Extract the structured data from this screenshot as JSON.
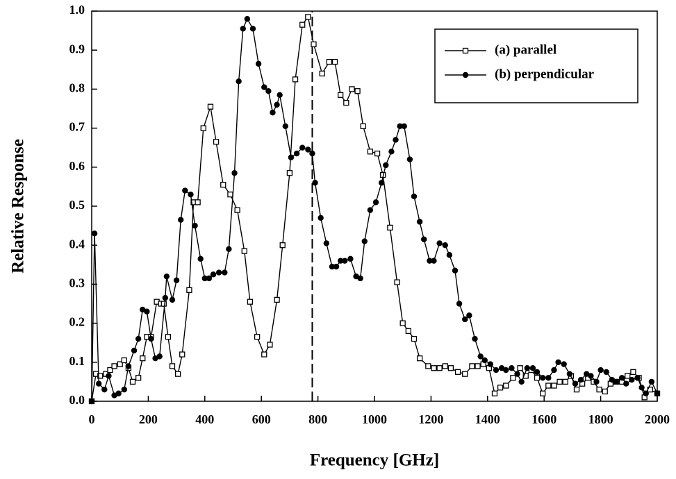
{
  "chart_data": {
    "type": "line",
    "xlabel": "Frequency [GHz]",
    "ylabel": "Relative Response",
    "xlim": [
      0,
      2000
    ],
    "xticks": [
      0,
      200,
      400,
      600,
      800,
      1000,
      1200,
      1400,
      1600,
      1800,
      2000
    ],
    "ylim": [
      0,
      1
    ],
    "yticks": [
      {
        "value": 0,
        "label": "0.0"
      },
      {
        "value": 0.1,
        "label": "0.1"
      },
      {
        "value": 0.2,
        "label": "0.2"
      },
      {
        "value": 0.3,
        "label": "0.3"
      },
      {
        "value": 0.4,
        "label": "0.4"
      },
      {
        "value": 0.5,
        "label": "0.5"
      },
      {
        "value": 0.6,
        "label": "0.6"
      },
      {
        "value": 0.7,
        "label": "0.7"
      },
      {
        "value": 0.8,
        "label": "0.8"
      },
      {
        "value": 0.9,
        "label": "0.9"
      },
      {
        "value": 1,
        "label": "1.0"
      }
    ],
    "grid": false,
    "legend": "upper right",
    "reference_line": {
      "x": 780,
      "style": "dashed"
    },
    "series": [
      {
        "name": "(a) parallel",
        "color": "#000000",
        "marker": "square-open",
        "x": [
          0,
          15,
          30,
          50,
          65,
          80,
          100,
          115,
          130,
          145,
          165,
          180,
          195,
          210,
          230,
          245,
          255,
          270,
          285,
          305,
          320,
          345,
          360,
          375,
          395,
          420,
          440,
          465,
          490,
          515,
          540,
          560,
          585,
          610,
          630,
          655,
          675,
          700,
          720,
          745,
          765,
          785,
          815,
          840,
          860,
          880,
          900,
          920,
          940,
          960,
          985,
          1010,
          1030,
          1055,
          1080,
          1100,
          1120,
          1140,
          1160,
          1190,
          1210,
          1230,
          1250,
          1270,
          1295,
          1320,
          1345,
          1365,
          1385,
          1405,
          1425,
          1445,
          1465,
          1490,
          1515,
          1535,
          1555,
          1575,
          1595,
          1615,
          1635,
          1655,
          1675,
          1695,
          1715,
          1735,
          1755,
          1775,
          1795,
          1815,
          1835,
          1855,
          1875,
          1895,
          1915,
          1935,
          1955,
          1975,
          2000
        ],
        "values": [
          0,
          0.07,
          0.065,
          0.07,
          0.08,
          0.09,
          0.095,
          0.105,
          0.085,
          0.05,
          0.06,
          0.11,
          0.165,
          0.165,
          0.255,
          0.25,
          0.25,
          0.165,
          0.09,
          0.07,
          0.12,
          0.285,
          0.51,
          0.51,
          0.7,
          0.755,
          0.665,
          0.555,
          0.53,
          0.49,
          0.385,
          0.255,
          0.165,
          0.12,
          0.145,
          0.26,
          0.4,
          0.585,
          0.825,
          0.965,
          0.985,
          0.915,
          0.84,
          0.87,
          0.87,
          0.785,
          0.765,
          0.8,
          0.795,
          0.705,
          0.64,
          0.635,
          0.58,
          0.445,
          0.305,
          0.2,
          0.18,
          0.16,
          0.11,
          0.09,
          0.085,
          0.085,
          0.09,
          0.085,
          0.075,
          0.07,
          0.09,
          0.09,
          0.095,
          0.085,
          0.02,
          0.035,
          0.04,
          0.06,
          0.085,
          0.065,
          0.08,
          0.06,
          0.02,
          0.04,
          0.04,
          0.05,
          0.05,
          0.065,
          0.03,
          0.045,
          0.06,
          0.05,
          0.03,
          0.025,
          0.045,
          0.05,
          0.05,
          0.065,
          0.075,
          0.06,
          0.01,
          0.03,
          0.02
        ]
      },
      {
        "name": "(b) perpendicular",
        "color": "#000000",
        "marker": "circle-filled",
        "x": [
          0,
          10,
          25,
          45,
          60,
          80,
          95,
          115,
          130,
          150,
          165,
          180,
          195,
          210,
          225,
          240,
          260,
          265,
          285,
          300,
          315,
          330,
          350,
          365,
          385,
          400,
          415,
          430,
          450,
          470,
          485,
          505,
          520,
          535,
          550,
          570,
          590,
          610,
          625,
          640,
          655,
          665,
          685,
          705,
          725,
          745,
          765,
          780,
          790,
          810,
          830,
          850,
          865,
          880,
          895,
          915,
          935,
          950,
          965,
          985,
          1005,
          1025,
          1040,
          1060,
          1075,
          1090,
          1105,
          1125,
          1140,
          1160,
          1175,
          1195,
          1210,
          1230,
          1250,
          1265,
          1285,
          1300,
          1320,
          1335,
          1355,
          1375,
          1390,
          1410,
          1430,
          1450,
          1465,
          1485,
          1505,
          1520,
          1540,
          1560,
          1575,
          1595,
          1615,
          1635,
          1650,
          1670,
          1690,
          1710,
          1730,
          1750,
          1765,
          1785,
          1800,
          1820,
          1840,
          1855,
          1875,
          1890,
          1910,
          1930,
          1945,
          1960,
          1980,
          2000
        ],
        "values": [
          0,
          0.43,
          0.045,
          0.03,
          0.065,
          0.015,
          0.02,
          0.03,
          0.09,
          0.13,
          0.16,
          0.235,
          0.23,
          0.16,
          0.11,
          0.115,
          0.265,
          0.32,
          0.26,
          0.31,
          0.465,
          0.54,
          0.53,
          0.45,
          0.365,
          0.315,
          0.315,
          0.325,
          0.33,
          0.33,
          0.39,
          0.585,
          0.82,
          0.955,
          0.98,
          0.955,
          0.865,
          0.805,
          0.795,
          0.74,
          0.76,
          0.785,
          0.705,
          0.625,
          0.635,
          0.65,
          0.645,
          0.635,
          0.56,
          0.47,
          0.405,
          0.345,
          0.345,
          0.36,
          0.36,
          0.365,
          0.32,
          0.315,
          0.41,
          0.49,
          0.51,
          0.56,
          0.605,
          0.64,
          0.67,
          0.705,
          0.705,
          0.62,
          0.525,
          0.46,
          0.415,
          0.36,
          0.36,
          0.405,
          0.4,
          0.375,
          0.335,
          0.25,
          0.21,
          0.22,
          0.16,
          0.115,
          0.105,
          0.095,
          0.08,
          0.085,
          0.08,
          0.085,
          0.07,
          0.05,
          0.085,
          0.085,
          0.075,
          0.06,
          0.06,
          0.08,
          0.1,
          0.095,
          0.07,
          0.045,
          0.055,
          0.07,
          0.065,
          0.05,
          0.08,
          0.075,
          0.055,
          0.05,
          0.06,
          0.045,
          0.055,
          0.06,
          0.035,
          0.02,
          0.05,
          0.02
        ]
      }
    ]
  }
}
